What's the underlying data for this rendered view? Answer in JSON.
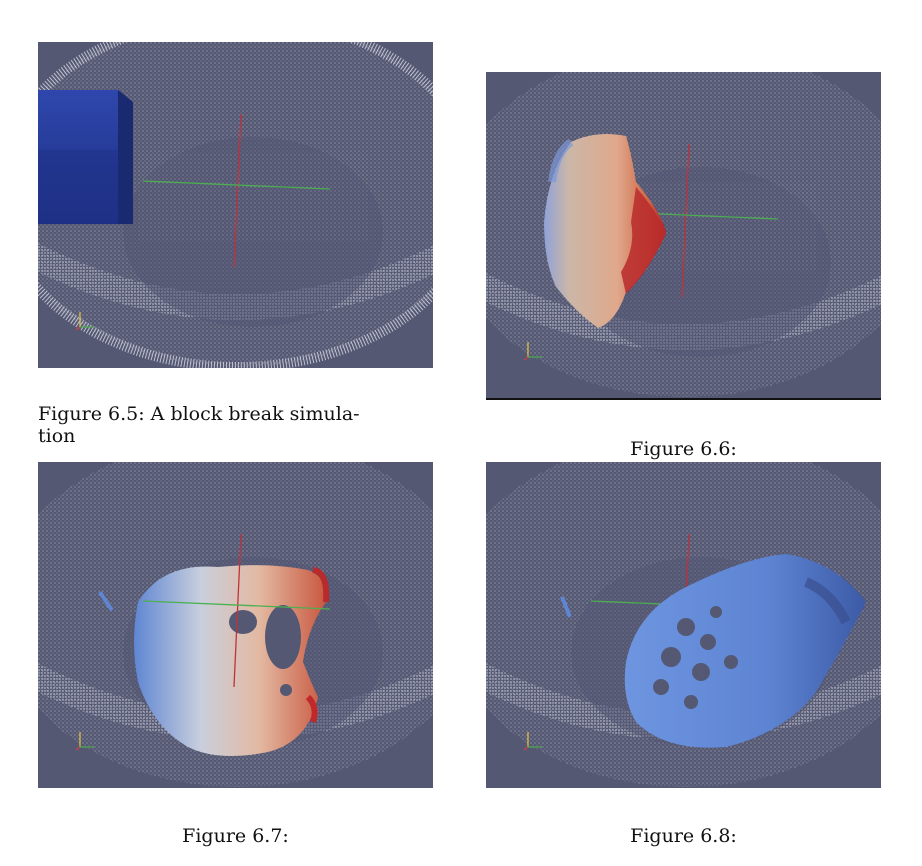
{
  "figures": [
    {
      "caption_line1": "Figure 6.5:  A block break simula-",
      "caption_line2": "tion"
    },
    {
      "caption": "Figure 6.6:"
    },
    {
      "caption": "Figure 6.7:"
    },
    {
      "caption": "Figure 6.8:"
    }
  ],
  "colors": {
    "background_panel": "#545873",
    "mesh_white": "#e8e8ee",
    "block_blue": "#2b3f9e",
    "fluid_warm": "#d9a58c",
    "fluid_hot": "#c0282a",
    "fluid_cool": "#5a7fd0",
    "axis_red": "#c0323a",
    "axis_green": "#4caf50"
  },
  "icons": [
    "orientation-axes-icon"
  ]
}
